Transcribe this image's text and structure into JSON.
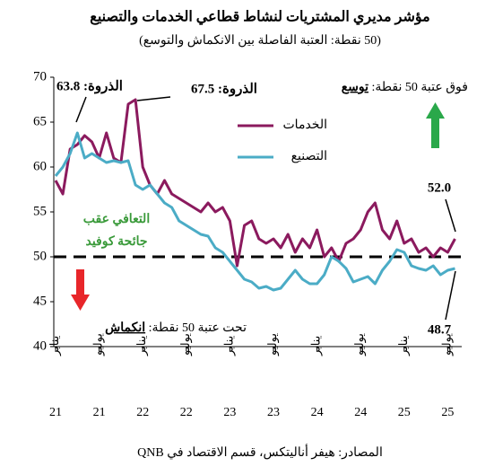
{
  "chart_data": {
    "type": "line",
    "title": "مؤشر مديري المشتريات لنشاط قطاعي الخدمات والتصنيع",
    "subtitle": "(50 نقطة: العتبة الفاصلة بين الانكماش والتوسع)",
    "source": "المصادر: هيفر أناليتكس، قسم الاقتصاد في QNB",
    "categories": [
      "يناير",
      null,
      null,
      null,
      null,
      null,
      "يوليو",
      null,
      null,
      null,
      null,
      null,
      "يناير",
      null,
      null,
      null,
      null,
      null,
      "يوليو",
      null,
      null,
      null,
      null,
      null,
      "يناير",
      null,
      null,
      null,
      null,
      null,
      "يوليو",
      null,
      null,
      null,
      null,
      null,
      "يناير",
      null,
      null,
      null,
      null,
      null,
      "يوليو",
      null,
      null,
      null,
      null,
      null,
      "يناير",
      null,
      null,
      null,
      null,
      null,
      "يوليو",
      null
    ],
    "category_years": [
      "21",
      null,
      null,
      null,
      null,
      null,
      "21",
      null,
      null,
      null,
      null,
      null,
      "22",
      null,
      null,
      null,
      null,
      null,
      "22",
      null,
      null,
      null,
      null,
      null,
      "23",
      null,
      null,
      null,
      null,
      null,
      "23",
      null,
      null,
      null,
      null,
      null,
      "24",
      null,
      null,
      null,
      null,
      null,
      "24",
      null,
      null,
      null,
      null,
      null,
      "25",
      null,
      null,
      null,
      null,
      null,
      "25",
      null
    ],
    "series": [
      {
        "name": "الخدمات",
        "color": "#8b1a5e",
        "values": [
          58.5,
          57,
          62,
          62.5,
          63.5,
          62.8,
          61,
          63.8,
          61,
          60.5,
          67,
          67.5,
          60,
          58,
          57,
          58.5,
          57,
          56.5,
          56,
          55.5,
          55,
          56,
          55,
          55.5,
          54,
          49,
          53.5,
          54,
          52,
          51.5,
          52,
          51,
          52.5,
          50.5,
          52,
          51,
          53,
          50,
          51,
          49.5,
          51.5,
          52,
          53,
          55,
          56,
          53,
          52,
          54,
          51.5,
          52,
          50.5,
          51,
          50,
          51,
          50.5,
          52
        ]
      },
      {
        "name": "التصنيع",
        "color": "#4bacc6",
        "values": [
          59,
          60,
          61.5,
          63.8,
          61,
          61.5,
          61,
          60.5,
          60.7,
          60.5,
          60.7,
          58,
          57.5,
          58,
          57,
          56,
          55.5,
          54,
          53.5,
          53,
          52.5,
          52.3,
          51,
          50.5,
          49.5,
          48.5,
          47.5,
          47.2,
          46.5,
          46.7,
          46.3,
          46.5,
          47.5,
          48.5,
          47.5,
          47,
          47,
          48,
          50,
          49.5,
          48.7,
          47.2,
          47.5,
          47.8,
          47,
          48.5,
          49.5,
          50.8,
          50.5,
          49,
          48.7,
          48.5,
          49,
          48,
          48.5,
          48.7
        ]
      }
    ],
    "ylim": [
      40,
      70
    ],
    "yticks": [
      40,
      45,
      50,
      55,
      60,
      65,
      70
    ],
    "threshold": 50,
    "annotations": {
      "peak_manufacturing": "الذروة: 63.8",
      "peak_services": "الذروة: 67.5",
      "last_services": "52.0",
      "last_manufacturing": "48.7",
      "above_label": "فوق عتبة 50 نقطة:",
      "above_word": "توسع",
      "below_label": "تحت عتبة 50 نقطة:",
      "below_word": "انكماش",
      "recovery_1": "التعافي عقب",
      "recovery_2": "جائحة كوفيد"
    }
  }
}
